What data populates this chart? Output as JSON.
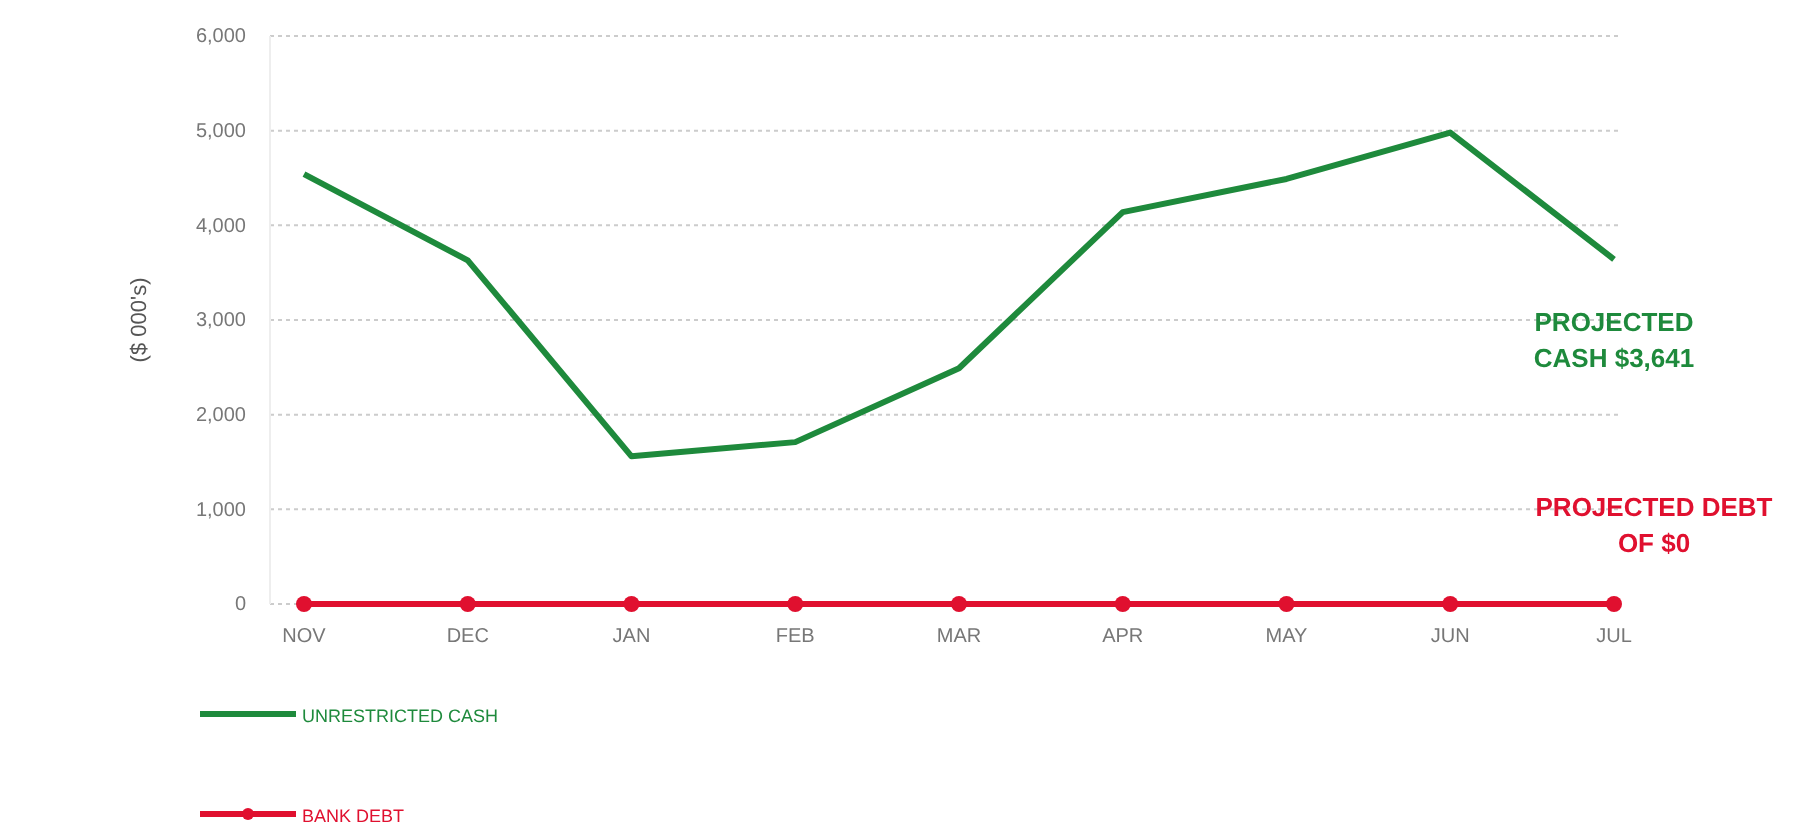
{
  "chart_data": {
    "type": "line",
    "ylabel": "($ 000's)",
    "categories": [
      "NOV",
      "DEC",
      "JAN",
      "FEB",
      "MAR",
      "APR",
      "MAY",
      "JUN",
      "JUL"
    ],
    "series": [
      {
        "name": "UNRESTRICTED CASH",
        "color": "#1e8a3c",
        "marker": "none",
        "values": [
          4540,
          3630,
          1560,
          1710,
          2490,
          4140,
          4490,
          4980,
          3641
        ]
      },
      {
        "name": "BANK DEBT",
        "color": "#e0102f",
        "marker": "circle",
        "values": [
          0,
          0,
          0,
          0,
          0,
          0,
          0,
          0,
          0
        ]
      }
    ],
    "ylim": [
      0,
      6000
    ],
    "yticks": [
      {
        "value": 0,
        "label": "0"
      },
      {
        "value": 1000,
        "label": "1,000"
      },
      {
        "value": 2000,
        "label": "2,000"
      },
      {
        "value": 3000,
        "label": "3,000"
      },
      {
        "value": 4000,
        "label": "4,000"
      },
      {
        "value": 5000,
        "label": "5,000"
      },
      {
        "value": 6000,
        "label": "6,000"
      }
    ],
    "grid": "y",
    "legend": "bottom left",
    "line_style": "solid",
    "annotations": [
      {
        "text": "PROJECTED CASH $3,641",
        "x": "JUL",
        "y": 3641
      },
      {
        "text": "PROJECTED DEBT OF $0",
        "x": "JUL",
        "y": 0
      }
    ]
  }
}
